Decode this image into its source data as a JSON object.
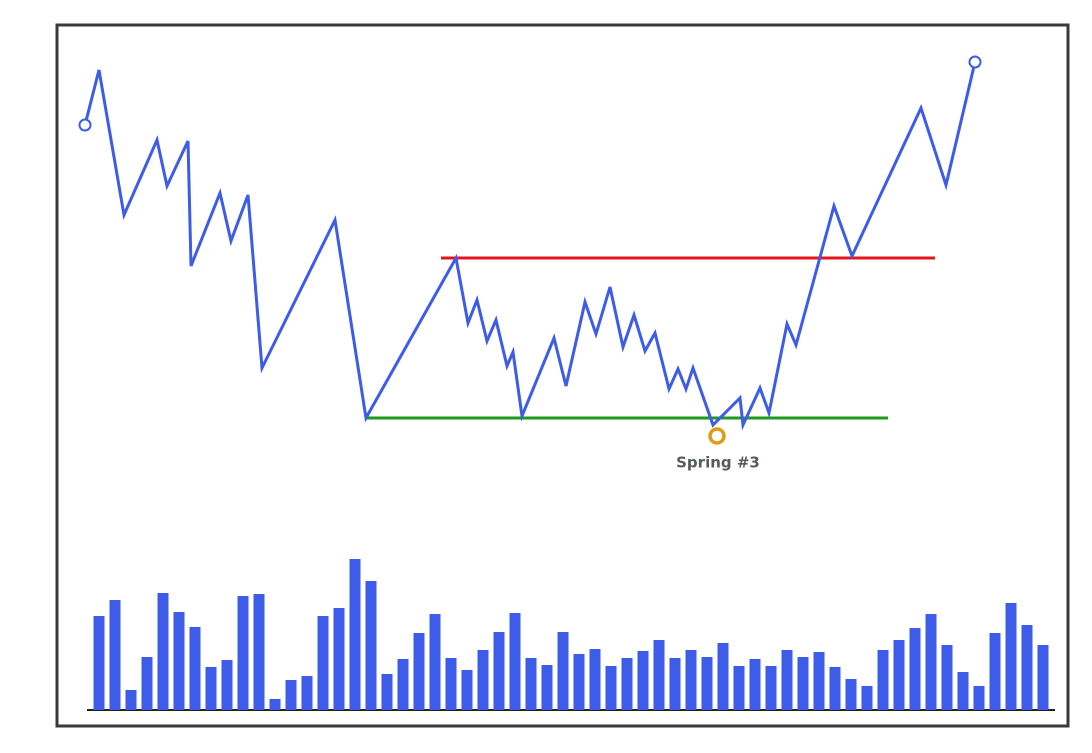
{
  "chart_data": [
    {
      "type": "line",
      "x": [
        0,
        14,
        39,
        72,
        82,
        103,
        106,
        135,
        146,
        163,
        177,
        250,
        281,
        371,
        383,
        392,
        402,
        411,
        422,
        428,
        437,
        469,
        481,
        500,
        511,
        525,
        538,
        549,
        560,
        570,
        584,
        593,
        601,
        608,
        628,
        655,
        658,
        675,
        684,
        702,
        711,
        749,
        767,
        836,
        861,
        890
      ],
      "values": [
        315,
        370,
        225,
        300,
        254,
        299,
        174,
        247,
        199,
        245,
        72,
        220,
        22,
        182,
        117,
        140,
        99,
        120,
        74,
        88,
        24,
        102,
        54,
        138,
        106,
        153,
        93,
        125,
        89,
        107,
        51,
        71,
        51,
        72,
        15,
        42,
        15,
        52,
        27,
        116,
        95,
        234,
        184,
        332,
        255,
        378
      ],
      "color": "#3d5ce8",
      "xlim": [
        0,
        890
      ],
      "ylim": [
        0,
        400
      ],
      "hlines": [
        {
          "y": 182,
          "x": [
            356,
            850
          ],
          "color": "#e8141c"
        },
        {
          "y": 22,
          "x": [
            281,
            803
          ],
          "color": "#1e9a1e"
        }
      ],
      "annotations": [
        {
          "text": "Spring #3",
          "x": 632,
          "y": 4,
          "color": "#e39b17"
        }
      ]
    },
    {
      "type": "bar",
      "values": [
        94,
        110,
        20,
        53,
        117,
        98,
        83,
        43,
        50,
        114,
        116,
        11,
        30,
        34,
        94,
        102,
        151,
        129,
        36,
        51,
        77,
        96,
        52,
        40,
        60,
        78,
        97,
        52,
        45,
        78,
        56,
        61,
        44,
        52,
        59,
        70,
        52,
        60,
        53,
        67,
        44,
        51,
        44,
        60,
        53,
        58,
        43,
        31,
        24,
        60,
        70,
        82,
        96,
        65,
        38,
        24,
        77,
        107,
        85,
        65
      ],
      "color": "#3d5ce8",
      "ylim": [
        0,
        160
      ]
    }
  ]
}
